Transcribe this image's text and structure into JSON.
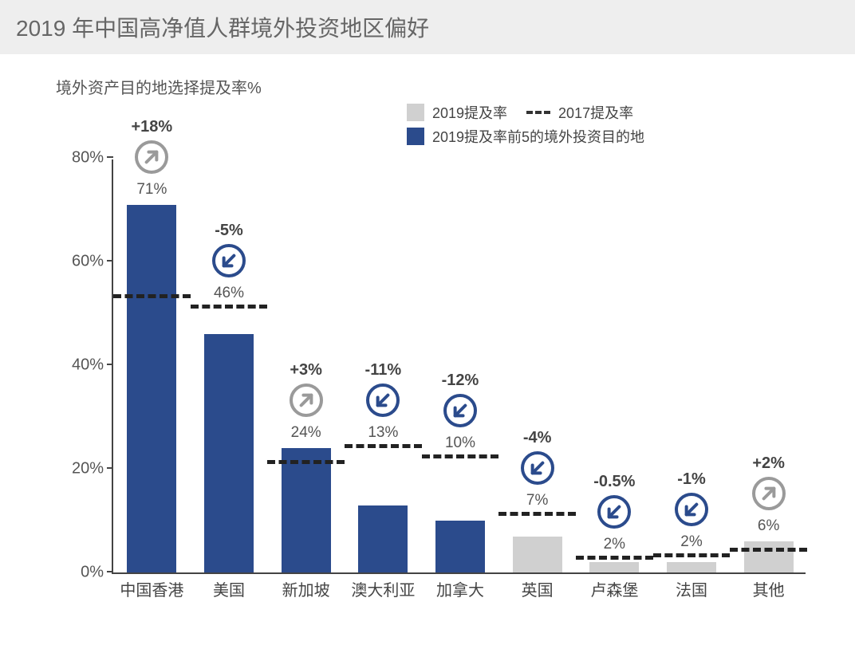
{
  "title": "2019 年中国高净值人群境外投资地区偏好",
  "subtitle": "境外资产目的地选择提及率%",
  "legend": {
    "series_a": "2019提及率",
    "series_b": "2017提及率",
    "series_c": "2019提及率前5的境外投资目的地"
  },
  "colors": {
    "top5_bar": "#2b4b8c",
    "other_bar": "#d0d0d0",
    "dash_2017": "#222222",
    "axis": "#444444",
    "bg": "#ffffff",
    "title_bg": "#eeeeee",
    "up_circle": "#9a9a9a",
    "down_circle": "#2b4b8c",
    "text": "#555555"
  },
  "chart": {
    "type": "bar",
    "ylim": [
      0,
      80
    ],
    "ytick_step": 20,
    "ytick_suffix": "%",
    "bar_width_ratio": 0.64,
    "categories": [
      "中国香港",
      "美国",
      "新加坡",
      "澳大利亚",
      "加拿大",
      "英国",
      "卢森堡",
      "法国",
      "其他"
    ],
    "values_2019": [
      71,
      46,
      24,
      13,
      10,
      7,
      2,
      2,
      6
    ],
    "values_2017": [
      53,
      51,
      21,
      24,
      22,
      11,
      2.5,
      3,
      4
    ],
    "bar_value_labels": [
      "71%",
      "46%",
      "24%",
      "13%",
      "10%",
      "7%",
      "2%",
      "2%",
      "6%"
    ],
    "is_top5": [
      true,
      true,
      true,
      true,
      true,
      false,
      false,
      false,
      false
    ],
    "change_labels": [
      "+18%",
      "-5%",
      "+3%",
      "-11%",
      "-12%",
      "-4%",
      "-0.5%",
      "-1%",
      "+2%"
    ],
    "change_direction": [
      "up",
      "down",
      "up",
      "down",
      "down",
      "down",
      "down",
      "down",
      "up"
    ]
  },
  "typography": {
    "title_fontsize": 28,
    "subtitle_fontsize": 20,
    "axis_fontsize": 20,
    "barlabel_fontsize": 19,
    "legend_fontsize": 18
  }
}
